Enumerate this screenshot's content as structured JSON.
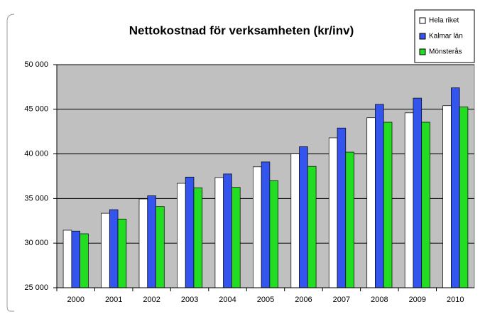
{
  "chart_data": {
    "type": "bar",
    "title": "Nettokostnad för verksamheten (kr/inv)",
    "categories": [
      "2000",
      "2001",
      "2002",
      "2003",
      "2004",
      "2005",
      "2006",
      "2007",
      "2008",
      "2009",
      "2010"
    ],
    "series": [
      {
        "name": "Hela riket",
        "color": "#ffffff",
        "values": [
          31450,
          33350,
          34950,
          36700,
          37350,
          38550,
          40000,
          41800,
          44050,
          44600,
          45400
        ]
      },
      {
        "name": "Kalmar län",
        "color": "#3355ee",
        "values": [
          31350,
          33750,
          35300,
          37400,
          37750,
          39100,
          40800,
          42900,
          45550,
          46250,
          47400
        ]
      },
      {
        "name": "Mönsterås",
        "color": "#22dd22",
        "values": [
          31050,
          32700,
          34100,
          36200,
          36250,
          37000,
          38600,
          40200,
          43550,
          43550,
          45250
        ]
      }
    ],
    "ylim": [
      25000,
      50000
    ],
    "yticks": [
      {
        "value": 25000,
        "label": "25 000"
      },
      {
        "value": 30000,
        "label": "30 000"
      },
      {
        "value": 35000,
        "label": "35 000"
      },
      {
        "value": 40000,
        "label": "40 000"
      },
      {
        "value": 45000,
        "label": "45 000"
      },
      {
        "value": 50000,
        "label": "50 000"
      }
    ],
    "grid": true,
    "legend": "top-right"
  }
}
